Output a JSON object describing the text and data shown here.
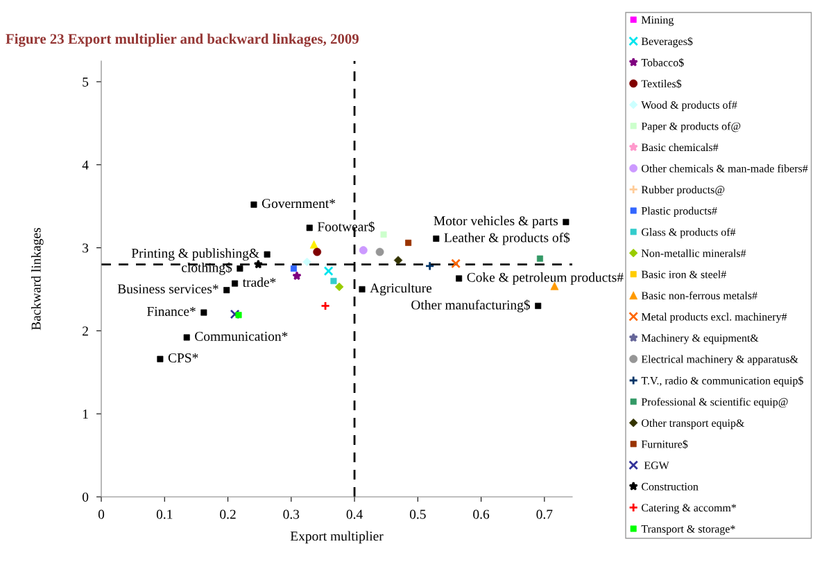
{
  "chart_data": {
    "type": "scatter",
    "title": "Figure 23 Export multiplier and backward linkages, 2009",
    "xlabel": "Export multiplier",
    "ylabel": "Backward linkages",
    "xlim": [
      0,
      0.744
    ],
    "xticks": [
      0,
      0.1,
      0.2,
      0.3,
      0.4,
      0.5,
      0.6,
      0.7
    ],
    "ylim": [
      0,
      5.25
    ],
    "yticks": [
      0,
      1,
      2,
      3,
      4,
      5
    ],
    "grid": false,
    "legend": "right",
    "ref_lines": [
      {
        "axis": "x",
        "value": 0.4,
        "color": "#000000",
        "line_style": "dashed"
      },
      {
        "axis": "y",
        "value": 2.8,
        "color": "#000000",
        "line_style": "dashed"
      }
    ],
    "series": [
      {
        "color": "#000000",
        "marker": "square",
        "x": [
          0.241,
          0.329,
          0.262,
          0.219,
          0.211,
          0.198,
          0.162,
          0.135,
          0.093,
          0.412,
          0.734,
          0.529,
          0.565,
          0.69
        ],
        "values": [
          3.52,
          3.24,
          2.92,
          2.75,
          2.57,
          2.49,
          2.22,
          1.92,
          1.66,
          2.5,
          3.31,
          3.11,
          2.63,
          2.3
        ]
      },
      {
        "color": "#ffee00",
        "marker": "triangle",
        "x": [
          0.336
        ],
        "values": [
          3.04
        ]
      },
      {
        "name": "Mining",
        "color": "#ff00ff",
        "marker": "square",
        "x": [
          null
        ],
        "values": [
          null
        ]
      },
      {
        "name": "Beverages$",
        "color": "#00e5ee",
        "marker": "cross",
        "x": [
          0.359
        ],
        "values": [
          2.72
        ]
      },
      {
        "name": "Tobacco$",
        "color": "#7f007f",
        "marker": "star",
        "x": [
          0.309
        ],
        "values": [
          2.66
        ]
      },
      {
        "name": "Textiles$",
        "color": "#800000",
        "marker": "circle",
        "x": [
          0.341
        ],
        "values": [
          2.95
        ]
      },
      {
        "name": "Wood & products of#",
        "color": "#ccffff",
        "marker": "diamond",
        "x": [
          0.325
        ],
        "values": [
          2.83
        ]
      },
      {
        "name": "Paper & products of@",
        "color": "#ccffcc",
        "marker": "square",
        "x": [
          0.446
        ],
        "values": [
          3.16
        ]
      },
      {
        "name": "Basic chemicals#",
        "color": "#ff99cc",
        "marker": "star",
        "x": [
          null
        ],
        "values": [
          null
        ]
      },
      {
        "name": "Other chemicals & man-made fibers#",
        "color": "#cc99ff",
        "marker": "circle",
        "x": [
          0.414
        ],
        "values": [
          2.97
        ]
      },
      {
        "name": "Rubber products@",
        "color": "#ffcc99",
        "marker": "plus",
        "x": [
          null
        ],
        "values": [
          null
        ]
      },
      {
        "name": "Plastic products#",
        "color": "#3366ff",
        "marker": "square",
        "x": [
          0.304
        ],
        "values": [
          2.75
        ]
      },
      {
        "name": "Glass & products of#",
        "color": "#33cccc",
        "marker": "square",
        "x": [
          0.367
        ],
        "values": [
          2.6
        ]
      },
      {
        "name": "Non-metallic minerals#",
        "color": "#99cc00",
        "marker": "diamond",
        "x": [
          0.376
        ],
        "values": [
          2.53
        ]
      },
      {
        "name": "Basic iron & steel#",
        "color": "#ffcc00",
        "marker": "square",
        "x": [
          null
        ],
        "values": [
          null
        ]
      },
      {
        "name": "Basic non-ferrous metals#",
        "color": "#ff9900",
        "marker": "triangle",
        "x": [
          0.716
        ],
        "values": [
          2.54
        ]
      },
      {
        "name": "Metal products excl. machinery#",
        "color": "#ff6600",
        "marker": "cross",
        "x": [
          0.56
        ],
        "values": [
          2.81
        ]
      },
      {
        "name": "Machinery & equipment&",
        "color": "#666699",
        "marker": "star",
        "x": [
          null
        ],
        "values": [
          null
        ]
      },
      {
        "name": "Electrical machinery & apparatus&",
        "color": "#969696",
        "marker": "circle",
        "x": [
          0.44
        ],
        "values": [
          2.95
        ]
      },
      {
        "name": "T.V., radio & communication equip$",
        "color": "#003366",
        "marker": "plus",
        "x": [
          0.519
        ],
        "values": [
          2.78
        ]
      },
      {
        "name": "Professional & scientific equip@",
        "color": "#339966",
        "marker": "square",
        "x": [
          0.693
        ],
        "values": [
          2.87
        ]
      },
      {
        "name": "Other transport equip&",
        "color": "#333300",
        "marker": "diamond",
        "x": [
          0.469
        ],
        "values": [
          2.85
        ]
      },
      {
        "name": "Furniture$",
        "color": "#993300",
        "marker": "square",
        "x": [
          0.485
        ],
        "values": [
          3.06
        ]
      },
      {
        "name": " EGW",
        "color": "#333399",
        "marker": "cross",
        "x": [
          0.211
        ],
        "values": [
          2.2
        ]
      },
      {
        "name": "Construction",
        "color": "#000000",
        "marker": "star",
        "x": [
          0.248
        ],
        "values": [
          2.8
        ]
      },
      {
        "name": "Catering & accomm*",
        "color": "#ff0000",
        "marker": "plus",
        "x": [
          0.354
        ],
        "values": [
          2.3
        ]
      },
      {
        "name": "Transport & storage*",
        "color": "#00ff00",
        "marker": "square",
        "x": [
          0.217
        ],
        "values": [
          2.19
        ]
      }
    ],
    "annotations": [
      {
        "text": "Government*",
        "x": 0.241,
        "y": 3.52
      },
      {
        "text": "Footwear$",
        "x": 0.329,
        "y": 3.24
      },
      {
        "text": "Printing & publishing&",
        "x": 0.262,
        "y": 2.92
      },
      {
        "text": "clothing$",
        "x": 0.219,
        "y": 2.75
      },
      {
        "text": "trade*",
        "x": 0.211,
        "y": 2.57
      },
      {
        "text": "Business services*",
        "x": 0.198,
        "y": 2.49
      },
      {
        "text": "Finance*",
        "x": 0.162,
        "y": 2.22
      },
      {
        "text": "Communication*",
        "x": 0.135,
        "y": 1.92
      },
      {
        "text": "CPS*",
        "x": 0.093,
        "y": 1.66
      },
      {
        "text": "Agriculture",
        "x": 0.412,
        "y": 2.5
      },
      {
        "text": "Motor vehicles & parts",
        "x": 0.734,
        "y": 3.31
      },
      {
        "text": "Leather & products of$",
        "x": 0.529,
        "y": 3.11
      },
      {
        "text": "Coke & petroleum products#",
        "x": 0.565,
        "y": 2.63
      },
      {
        "text": "Other manufacturing$",
        "x": 0.69,
        "y": 2.3
      }
    ]
  }
}
